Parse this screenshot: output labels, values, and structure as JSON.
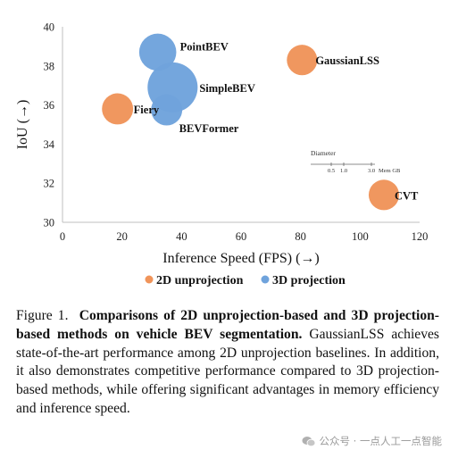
{
  "chart_data": {
    "type": "scatter",
    "xlabel": "Inference Speed (FPS) (→)",
    "ylabel": "IoU (→)",
    "xlim": [
      0,
      120
    ],
    "ylim": [
      30,
      40
    ],
    "x_ticks": [
      0,
      20,
      40,
      60,
      80,
      100,
      120
    ],
    "y_ticks": [
      30,
      32,
      34,
      36,
      38,
      40
    ],
    "grid": false,
    "legend_position": "bottom",
    "series": [
      {
        "name": "2D unprojection",
        "color": "#F0945A",
        "points": [
          {
            "label": "GaussianLSS",
            "x": 80.5,
            "y": 38.3,
            "diameter": 0.55
          },
          {
            "label": "Fiery",
            "x": 18.5,
            "y": 35.8,
            "diameter": 0.6
          },
          {
            "label": "CVT",
            "x": 108,
            "y": 31.4,
            "diameter": 0.55
          }
        ]
      },
      {
        "name": "3D projection",
        "color": "#6FA3DC",
        "points": [
          {
            "label": "PointBEV",
            "x": 32,
            "y": 38.7,
            "diameter": 1.1
          },
          {
            "label": "SimpleBEV",
            "x": 37,
            "y": 36.9,
            "diameter": 2.7
          },
          {
            "label": "BEVFormer",
            "x": 35,
            "y": 35.75,
            "diameter": 0.6
          }
        ]
      }
    ],
    "size_legend": {
      "title": "Diameter",
      "ticks": [
        "0.5",
        "1.0",
        "3.0"
      ],
      "unit": "Mem GB"
    }
  },
  "caption": {
    "figure_label": "Figure 1.",
    "bold_text": "Comparisons of 2D unprojection-based and 3D projection-based methods on vehicle BEV segmentation.",
    "body_text": "GaussianLSS achieves state-of-the-art performance among 2D unprojection baselines. In addition, it also demonstrates competitive performance compared to 3D projection-based methods, while offering significant advantages in memory efficiency and inference speed."
  },
  "watermark": {
    "text": "公众号 · 一点人工一点智能",
    "icon": "wechat-icon"
  }
}
